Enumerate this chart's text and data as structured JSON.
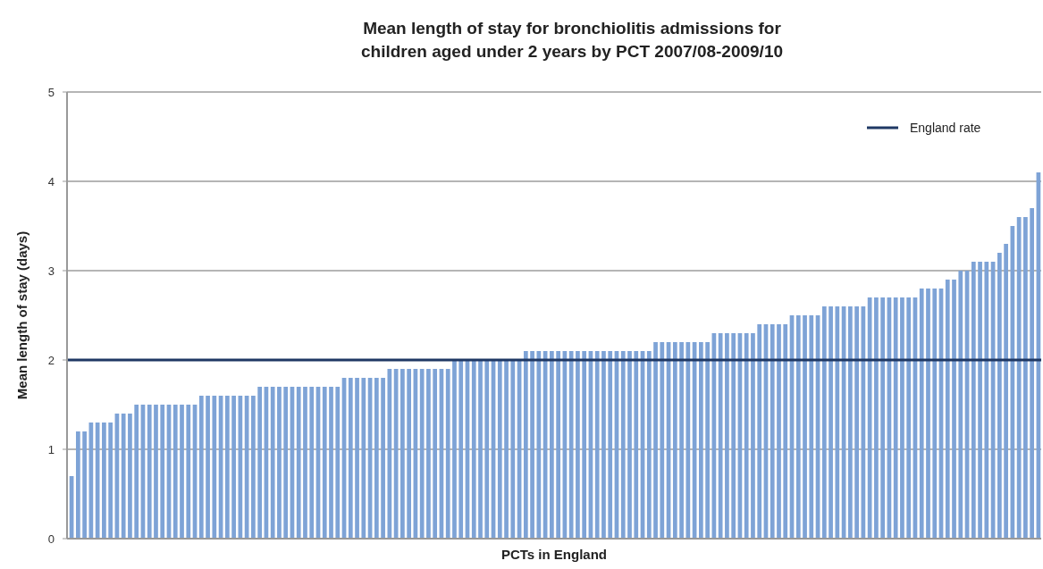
{
  "chart_data": {
    "type": "bar",
    "title": "Mean length of stay for bronchiolitis admissions for children aged under 2 years by PCT 2007/08-2009/10",
    "xlabel": "PCTs in England",
    "ylabel": "Mean length of stay  (days)",
    "categories": [
      null,
      null,
      null,
      null,
      null,
      null,
      null,
      null,
      null,
      null,
      null,
      null,
      null,
      null,
      null,
      null,
      null,
      null,
      null,
      null,
      null,
      null,
      null,
      null,
      null,
      null,
      null,
      null,
      null,
      null,
      null,
      null,
      null,
      null,
      null,
      null,
      null,
      null,
      null,
      null,
      null,
      null,
      null,
      null,
      null,
      null,
      null,
      null,
      null,
      null,
      null,
      null,
      null,
      null,
      null,
      null,
      null,
      null,
      null,
      null,
      null,
      null,
      null,
      null,
      null,
      null,
      null,
      null,
      null,
      null,
      null,
      null,
      null,
      null,
      null,
      null,
      null,
      null,
      null,
      null,
      null,
      null,
      null,
      null,
      null,
      null,
      null,
      null,
      null,
      null,
      null,
      null,
      null,
      null,
      null,
      null,
      null,
      null,
      null,
      null,
      null,
      null,
      null,
      null,
      null,
      null,
      null,
      null,
      null,
      null,
      null,
      null,
      null,
      null,
      null,
      null,
      null,
      null,
      null,
      null,
      null,
      null,
      null,
      null,
      null,
      null,
      null,
      null,
      null,
      null,
      null,
      null,
      null,
      null,
      null,
      null,
      null,
      null,
      null,
      null,
      null,
      null,
      null,
      null,
      null,
      null,
      null,
      null,
      null,
      null
    ],
    "values": [
      0.7,
      1.2,
      1.2,
      1.3,
      1.3,
      1.3,
      1.3,
      1.4,
      1.4,
      1.4,
      1.5,
      1.5,
      1.5,
      1.5,
      1.5,
      1.5,
      1.5,
      1.5,
      1.5,
      1.5,
      1.6,
      1.6,
      1.6,
      1.6,
      1.6,
      1.6,
      1.6,
      1.6,
      1.6,
      1.7,
      1.7,
      1.7,
      1.7,
      1.7,
      1.7,
      1.7,
      1.7,
      1.7,
      1.7,
      1.7,
      1.7,
      1.7,
      1.8,
      1.8,
      1.8,
      1.8,
      1.8,
      1.8,
      1.8,
      1.9,
      1.9,
      1.9,
      1.9,
      1.9,
      1.9,
      1.9,
      1.9,
      1.9,
      1.9,
      2.0,
      2.0,
      2.0,
      2.0,
      2.0,
      2.0,
      2.0,
      2.0,
      2.0,
      2.0,
      2.0,
      2.1,
      2.1,
      2.1,
      2.1,
      2.1,
      2.1,
      2.1,
      2.1,
      2.1,
      2.1,
      2.1,
      2.1,
      2.1,
      2.1,
      2.1,
      2.1,
      2.1,
      2.1,
      2.1,
      2.1,
      2.2,
      2.2,
      2.2,
      2.2,
      2.2,
      2.2,
      2.2,
      2.2,
      2.2,
      2.3,
      2.3,
      2.3,
      2.3,
      2.3,
      2.3,
      2.3,
      2.4,
      2.4,
      2.4,
      2.4,
      2.4,
      2.5,
      2.5,
      2.5,
      2.5,
      2.5,
      2.6,
      2.6,
      2.6,
      2.6,
      2.6,
      2.6,
      2.6,
      2.7,
      2.7,
      2.7,
      2.7,
      2.7,
      2.7,
      2.7,
      2.7,
      2.8,
      2.8,
      2.8,
      2.8,
      2.9,
      2.9,
      3.0,
      3.0,
      3.1,
      3.1,
      3.1,
      3.1,
      3.2,
      3.3,
      3.5,
      3.6,
      3.6,
      3.7,
      4.1
    ],
    "color": "#7ea3d6",
    "ylim": [
      0,
      5
    ],
    "yticks": [
      0,
      1,
      2,
      3,
      4,
      5
    ],
    "grid": "y",
    "legend": "top right",
    "ref_lines": [
      {
        "axis": "y",
        "value": 2.0,
        "label": "England rate",
        "color": "#1f3864"
      }
    ]
  }
}
